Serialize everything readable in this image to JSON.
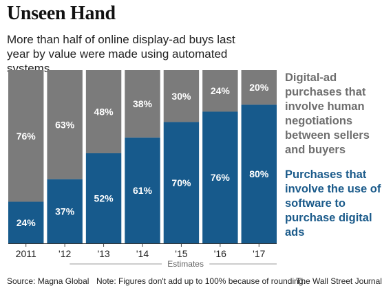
{
  "title": "Unseen Hand",
  "subtitle": "More than half of online display-ad buys last year by value were made using automated systems.",
  "legend": {
    "human": "Digital-ad purchases that involve human negotiations between sellers and buyers",
    "automated": "Purchases that involve the use of software to purchase digital ads"
  },
  "footer": {
    "source": "Source: Magna Global",
    "note": "Note: Figures don't add up to 100% because of rounding.",
    "publisher": "The Wall Street Journal"
  },
  "colors": {
    "human": "#7b7b7b",
    "automated": "#175a8c"
  },
  "chart_data": {
    "type": "bar",
    "stacked": true,
    "categories": [
      "2011",
      "'12",
      "'13",
      "'14",
      "'15",
      "'16",
      "'17"
    ],
    "series": [
      {
        "name": "Purchases that involve the use of software to purchase digital ads",
        "values": [
          24,
          37,
          52,
          61,
          70,
          76,
          80
        ],
        "labels": [
          "24%",
          "37%",
          "52%",
          "61%",
          "70%",
          "76%",
          "80%"
        ]
      },
      {
        "name": "Digital-ad purchases that involve human negotiations between sellers and buyers",
        "values": [
          76,
          63,
          48,
          38,
          30,
          24,
          20
        ],
        "labels": [
          "76%",
          "63%",
          "48%",
          "38%",
          "30%",
          "24%",
          "20%"
        ]
      }
    ],
    "ylim": [
      0,
      100
    ],
    "estimates_label": "Estimates",
    "estimates_categories": [
      "'14",
      "'15",
      "'16",
      "'17"
    ]
  }
}
